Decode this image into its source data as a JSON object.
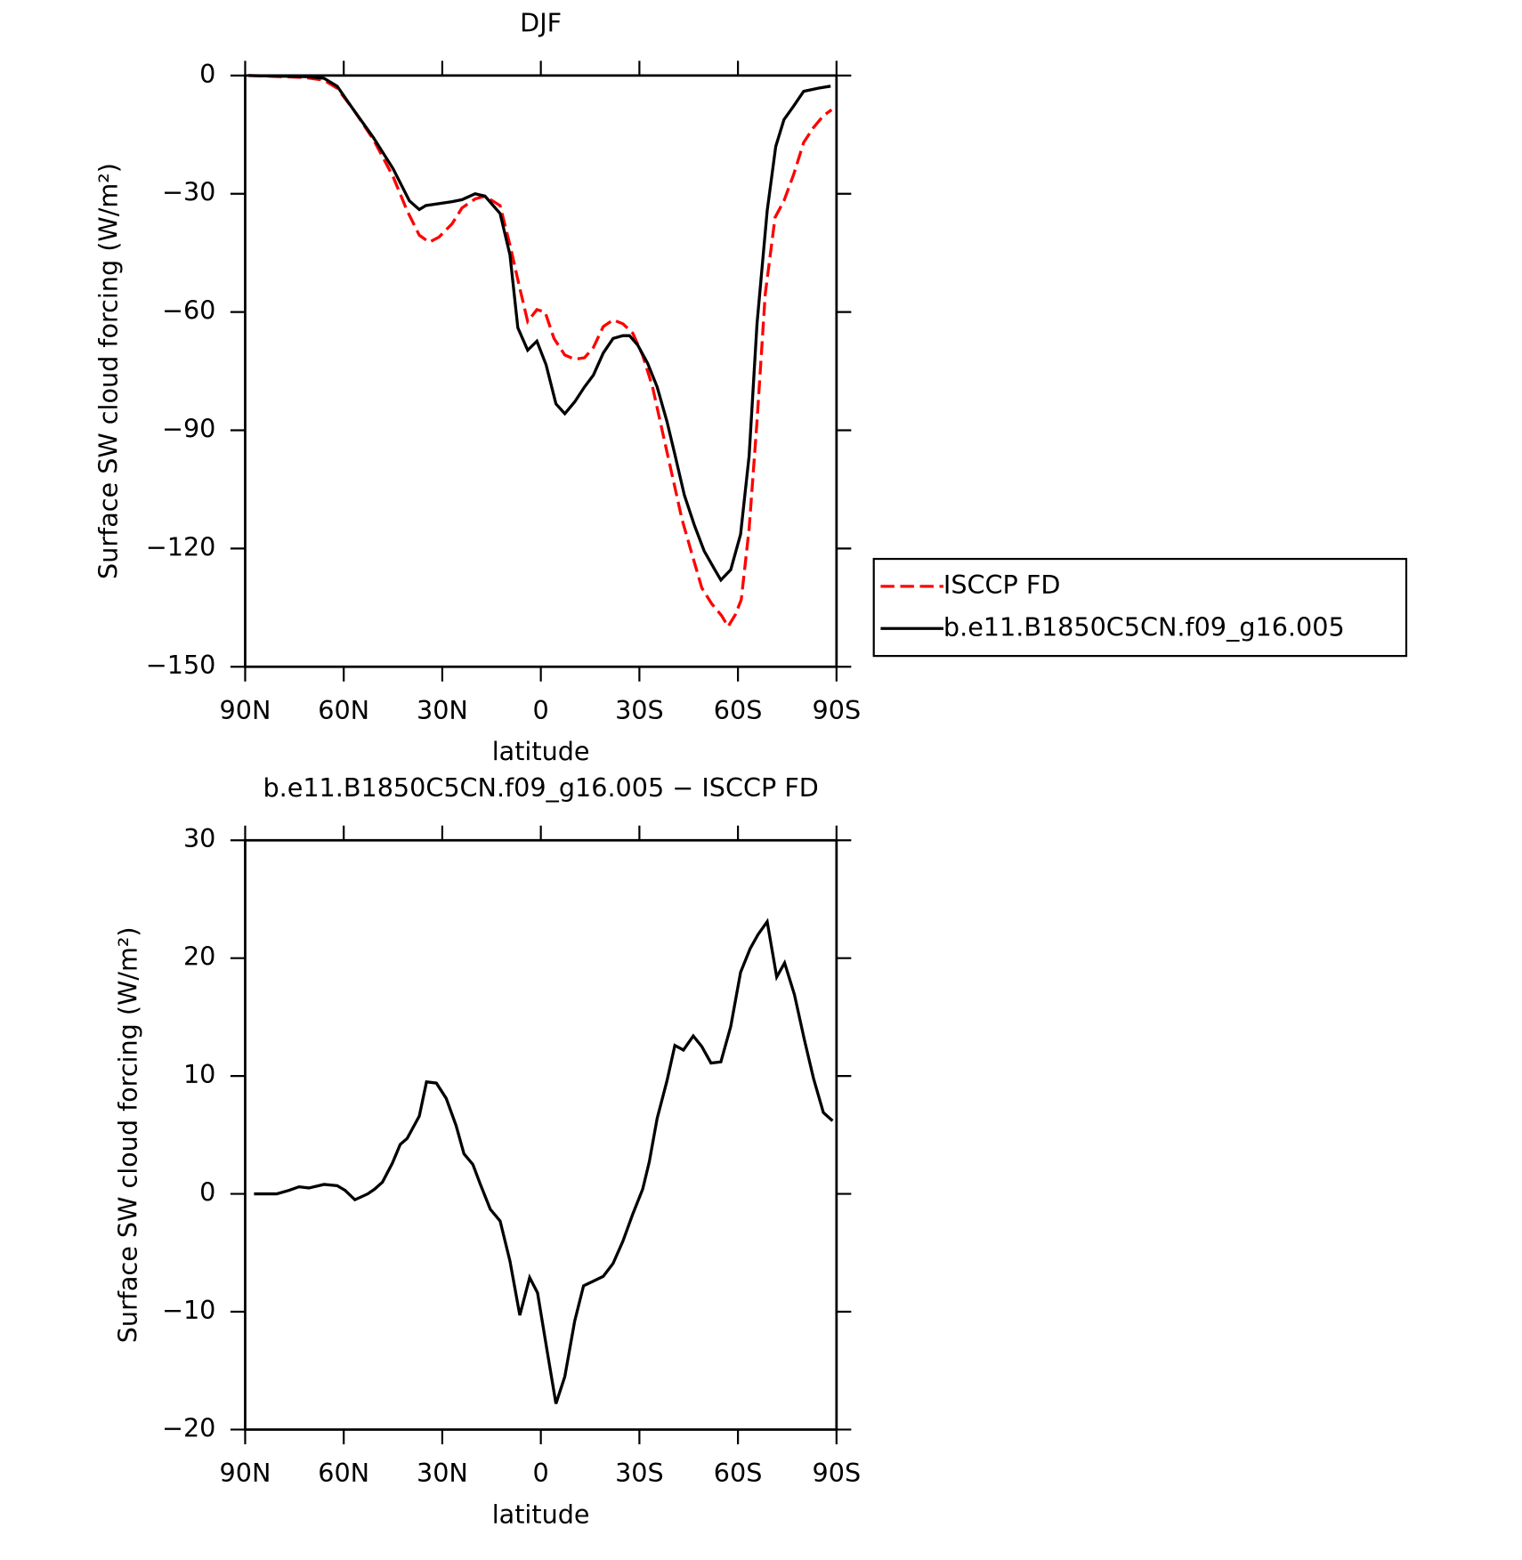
{
  "chart_data": [
    {
      "type": "line",
      "title": "DJF",
      "xlabel": "latitude",
      "ylabel": "Surface SW cloud forcing (W/m²)",
      "xlim": [
        90,
        -90
      ],
      "ylim": [
        -150,
        0
      ],
      "xticks": [
        {
          "value": 90,
          "label": "90N"
        },
        {
          "value": 60,
          "label": "60N"
        },
        {
          "value": 30,
          "label": "30N"
        },
        0,
        {
          "value": -30,
          "label": "30S"
        },
        {
          "value": -60,
          "label": "60S"
        },
        {
          "value": -90,
          "label": "90S"
        }
      ],
      "yticks": [
        0,
        {
          "value": -30,
          "label": "−30"
        },
        {
          "value": -60,
          "label": "−60"
        },
        {
          "value": -90,
          "label": "−90"
        },
        {
          "value": -120,
          "label": "−120"
        },
        {
          "value": -150,
          "label": "−150"
        }
      ],
      "legend": "outside-right",
      "series": [
        {
          "name": "ISCCP FD",
          "color": "#ff0000",
          "linestyle": "dashed",
          "x": [
            89,
            72,
            66,
            62,
            57,
            51,
            45,
            40.7,
            37,
            34,
            31,
            27,
            24,
            20,
            17,
            12.4,
            9.4,
            6.4,
            4,
            1.2,
            -1.3,
            -4,
            -7.3,
            -10.3,
            -13.3,
            -16,
            -19,
            -22,
            -25,
            -28,
            -31,
            -34,
            -37,
            -40,
            -43,
            -46,
            -49,
            -52,
            -55,
            -57,
            -59.2,
            -61,
            -63.4,
            -65.8,
            -68.3,
            -71.3,
            -74,
            -77,
            -80,
            -83,
            -86,
            -88.5
          ],
          "values": [
            0,
            -0.5,
            -1.2,
            -3.2,
            -8.7,
            -16.2,
            -25.6,
            -34.3,
            -40.5,
            -42.3,
            -41,
            -37.6,
            -33.6,
            -31.3,
            -30.6,
            -33,
            -43,
            -54,
            -62.4,
            -59.4,
            -60,
            -66.7,
            -70.9,
            -72,
            -71.6,
            -69,
            -63.7,
            -62,
            -63,
            -65.4,
            -71,
            -79,
            -90.3,
            -101.5,
            -112.7,
            -121.4,
            -130,
            -134,
            -137,
            -139.8,
            -136.8,
            -133,
            -115,
            -87.8,
            -55.5,
            -36,
            -31.8,
            -25,
            -17,
            -13.2,
            -10.2,
            -8.7
          ]
        },
        {
          "name": "b.e11.B1850C5CN.f09_g16.005",
          "color": "#000000",
          "linestyle": "solid",
          "x": [
            89,
            70.6,
            66,
            62,
            57,
            51,
            45,
            40,
            37,
            35,
            27,
            24,
            20,
            17,
            12.4,
            9.4,
            7,
            4,
            1.2,
            -1.6,
            -4.6,
            -7.3,
            -10.3,
            -13.3,
            -16,
            -19,
            -22,
            -25,
            -27,
            -29.5,
            -32.5,
            -35.4,
            -38.4,
            -40.7,
            -43.7,
            -46.7,
            -49.7,
            -52.7,
            -54.8,
            -57.8,
            -60.8,
            -63.4,
            -65.8,
            -68.9,
            -71.5,
            -74,
            -77,
            -80,
            -84.6,
            -88.2
          ],
          "values": [
            0,
            -0.3,
            -0.7,
            -2.7,
            -8.7,
            -15.7,
            -23.6,
            -31.8,
            -34,
            -33,
            -32,
            -31.5,
            -30,
            -30.6,
            -35,
            -45.5,
            -64,
            -69.7,
            -67.4,
            -73.4,
            -83.3,
            -85.8,
            -82.8,
            -79,
            -76,
            -70.4,
            -66.7,
            -66,
            -66,
            -68.4,
            -73,
            -79,
            -87.8,
            -95.8,
            -106.5,
            -114,
            -120.6,
            -125,
            -128,
            -125.4,
            -116.4,
            -96.5,
            -63,
            -34.3,
            -18,
            -11.2,
            -7.7,
            -4,
            -3.2,
            -2.7
          ]
        }
      ]
    },
    {
      "type": "line",
      "title": "b.e11.B1850C5CN.f09_g16.005 − ISCCP FD",
      "xlabel": "latitude",
      "ylabel": "Surface SW cloud forcing (W/m²)",
      "xlim": [
        90,
        -90
      ],
      "ylim": [
        -20,
        30
      ],
      "xticks": [
        {
          "value": 90,
          "label": "90N"
        },
        {
          "value": 60,
          "label": "60N"
        },
        {
          "value": 30,
          "label": "30N"
        },
        0,
        {
          "value": -30,
          "label": "30S"
        },
        {
          "value": -60,
          "label": "60S"
        },
        {
          "value": -90,
          "label": "90S"
        }
      ],
      "yticks": [
        30,
        20,
        10,
        0,
        {
          "value": -10,
          "label": "−10"
        },
        {
          "value": -20,
          "label": "−20"
        }
      ],
      "series": [
        {
          "color": "#000000",
          "linestyle": "solid",
          "x": [
            87.3,
            80.4,
            76.6,
            73.6,
            70.6,
            66,
            62,
            59.6,
            56.6,
            52.7,
            50.6,
            48.2,
            45.2,
            42.8,
            40.7,
            37,
            34.8,
            31.8,
            28.8,
            25.8,
            23.4,
            20.7,
            18.4,
            15.4,
            12.4,
            9.4,
            6.4,
            3.4,
            1,
            -1.9,
            -4.6,
            -7.3,
            -10.3,
            -13,
            -16,
            -19,
            -22,
            -25,
            -28,
            -31,
            -33,
            -35.4,
            -38.4,
            -40.8,
            -43.4,
            -46.4,
            -49,
            -51.8,
            -54.8,
            -57.8,
            -60.8,
            -63.7,
            -66.1,
            -68.9,
            -71.8,
            -74.2,
            -77.2,
            -80.2,
            -83,
            -86,
            -88.8
          ],
          "values": [
            0,
            0,
            0.3,
            0.6,
            0.5,
            0.8,
            0.7,
            0.3,
            -0.5,
            0,
            0.4,
            1,
            2.6,
            4.2,
            4.7,
            6.6,
            9.5,
            9.4,
            8.1,
            5.8,
            3.4,
            2.5,
            0.8,
            -1.3,
            -2.3,
            -5.7,
            -10.3,
            -7.1,
            -8.4,
            -13.3,
            -17.8,
            -15.5,
            -10.8,
            -7.8,
            -7.4,
            -7,
            -5.9,
            -4,
            -1.7,
            0.4,
            2.7,
            6.4,
            9.6,
            12.6,
            12.2,
            13.4,
            12.5,
            11.1,
            11.2,
            14.2,
            18.8,
            20.8,
            22,
            23.1,
            18.4,
            19.6,
            16.9,
            13.1,
            9.8,
            6.9,
            6.2
          ]
        }
      ]
    }
  ]
}
